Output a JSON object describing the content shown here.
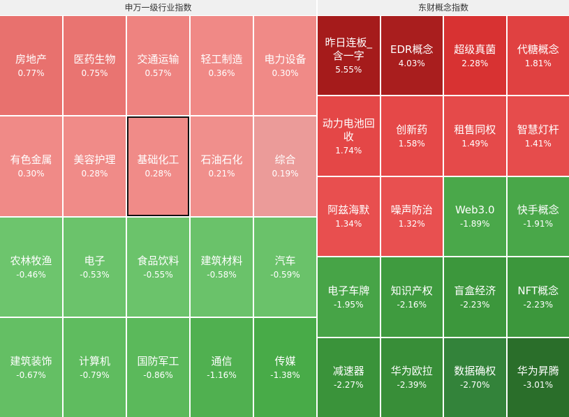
{
  "panels": [
    {
      "title": "申万一级行业指数",
      "columns": 5,
      "selected": 7,
      "cells": [
        {
          "name": "房地产",
          "change": "0.77%",
          "color": "#e8716e"
        },
        {
          "name": "医药生物",
          "change": "0.75%",
          "color": "#e97471"
        },
        {
          "name": "交通运输",
          "change": "0.57%",
          "color": "#ee8380"
        },
        {
          "name": "轻工制造",
          "change": "0.36%",
          "color": "#f08986"
        },
        {
          "name": "电力设备",
          "change": "0.30%",
          "color": "#f08a87"
        },
        {
          "name": "有色金属",
          "change": "0.30%",
          "color": "#f08a87"
        },
        {
          "name": "美容护理",
          "change": "0.28%",
          "color": "#f08b88"
        },
        {
          "name": "基础化工",
          "change": "0.28%",
          "color": "#f08b88"
        },
        {
          "name": "石油石化",
          "change": "0.21%",
          "color": "#f08f8c"
        },
        {
          "name": "综合",
          "change": "0.19%",
          "color": "#eb9b99"
        },
        {
          "name": "农林牧渔",
          "change": "-0.46%",
          "color": "#6dc56d"
        },
        {
          "name": "电子",
          "change": "-0.53%",
          "color": "#6bc36b"
        },
        {
          "name": "食品饮料",
          "change": "-0.55%",
          "color": "#6bc36b"
        },
        {
          "name": "建筑材料",
          "change": "-0.58%",
          "color": "#6ac26a"
        },
        {
          "name": "汽车",
          "change": "-0.59%",
          "color": "#6ac26a"
        },
        {
          "name": "建筑装饰",
          "change": "-0.67%",
          "color": "#64bf64"
        },
        {
          "name": "计算机",
          "change": "-0.79%",
          "color": "#5fbc5f"
        },
        {
          "name": "国防军工",
          "change": "-0.86%",
          "color": "#5bb95b"
        },
        {
          "name": "通信",
          "change": "-1.16%",
          "color": "#50b050"
        },
        {
          "name": "传媒",
          "change": "-1.38%",
          "color": "#48ab48"
        }
      ]
    },
    {
      "title": "东财概念指数",
      "columns": 4,
      "cells": [
        {
          "name": "昨日连板_含一字",
          "change": "5.55%",
          "color": "#a51b1b"
        },
        {
          "name": "EDR概念",
          "change": "4.03%",
          "color": "#a91e1e"
        },
        {
          "name": "超级真菌",
          "change": "2.28%",
          "color": "#d83232"
        },
        {
          "name": "代糖概念",
          "change": "1.81%",
          "color": "#e04141"
        },
        {
          "name": "动力电池回收",
          "change": "1.74%",
          "color": "#e44747"
        },
        {
          "name": "创新药",
          "change": "1.58%",
          "color": "#e54848"
        },
        {
          "name": "租售同权",
          "change": "1.49%",
          "color": "#e54a4a"
        },
        {
          "name": "智慧灯杆",
          "change": "1.41%",
          "color": "#e64c4c"
        },
        {
          "name": "阿兹海默",
          "change": "1.34%",
          "color": "#e84f4f"
        },
        {
          "name": "噪声防治",
          "change": "1.32%",
          "color": "#e85050"
        },
        {
          "name": "Web3.0",
          "change": "-1.89%",
          "color": "#4aa84a"
        },
        {
          "name": "快手概念",
          "change": "-1.91%",
          "color": "#49a749"
        },
        {
          "name": "电子车牌",
          "change": "-1.95%",
          "color": "#47a447"
        },
        {
          "name": "知识产权",
          "change": "-2.16%",
          "color": "#3f9b3f"
        },
        {
          "name": "盲盒经济",
          "change": "-2.23%",
          "color": "#3c973c"
        },
        {
          "name": "NFT概念",
          "change": "-2.23%",
          "color": "#3c973c"
        },
        {
          "name": "减速器",
          "change": "-2.27%",
          "color": "#3a933a"
        },
        {
          "name": "华为欧拉",
          "change": "-2.39%",
          "color": "#388e38"
        },
        {
          "name": "数据确权",
          "change": "-2.70%",
          "color": "#33833a"
        },
        {
          "name": "华为昇腾",
          "change": "-3.01%",
          "color": "#2a6e2a"
        }
      ]
    }
  ]
}
